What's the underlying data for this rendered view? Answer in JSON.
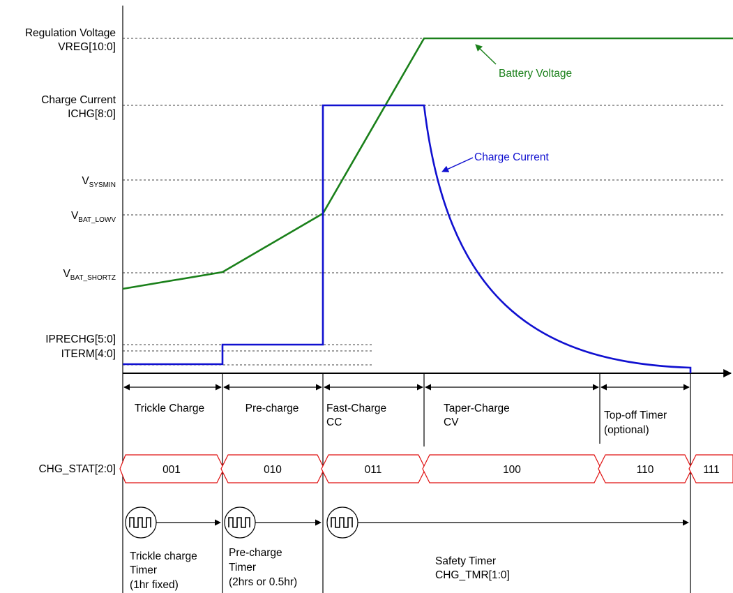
{
  "labels": {
    "vreg_line1": "Regulation Voltage",
    "vreg_line2": "VREG[10:0]",
    "ichg_line1": "Charge Current",
    "ichg_line2": "ICHG[8:0]",
    "vsysmin_main": "V",
    "vsysmin_sub": "SYSMIN",
    "vbat_lowv_main": "V",
    "vbat_lowv_sub": "BAT_LOWV",
    "vbat_shortz_main": "V",
    "vbat_shortz_sub": "BAT_SHORTZ",
    "iprechg": "IPRECHG[5:0]",
    "iterm": "ITERM[4:0]",
    "chg_stat": "CHG_STAT[2:0]"
  },
  "annotations": {
    "battery_voltage": "Battery Voltage",
    "charge_current": "Charge Current"
  },
  "phases": {
    "trickle": "Trickle Charge",
    "precharge": "Pre-charge",
    "fast_line1": "Fast-Charge",
    "fast_line2": "CC",
    "taper_line1": "Taper-Charge",
    "taper_line2": "CV",
    "topoff_line1": "Top-off Timer",
    "topoff_line2": "(optional)"
  },
  "states": [
    "001",
    "010",
    "011",
    "100",
    "110",
    "111"
  ],
  "timers": {
    "trickle_line1": "Trickle charge",
    "trickle_line2": "Timer",
    "trickle_line3": "(1hr fixed)",
    "precharge_line1": "Pre-charge",
    "precharge_line2": "Timer",
    "precharge_line3": "(2hrs or 0.5hr)",
    "safety_line1": "Safety Timer",
    "safety_line2": "CHG_TMR[1:0]"
  },
  "colors": {
    "battery_voltage": "#1a801a",
    "charge_current": "#1010d0",
    "state_outline": "#e01010"
  }
}
